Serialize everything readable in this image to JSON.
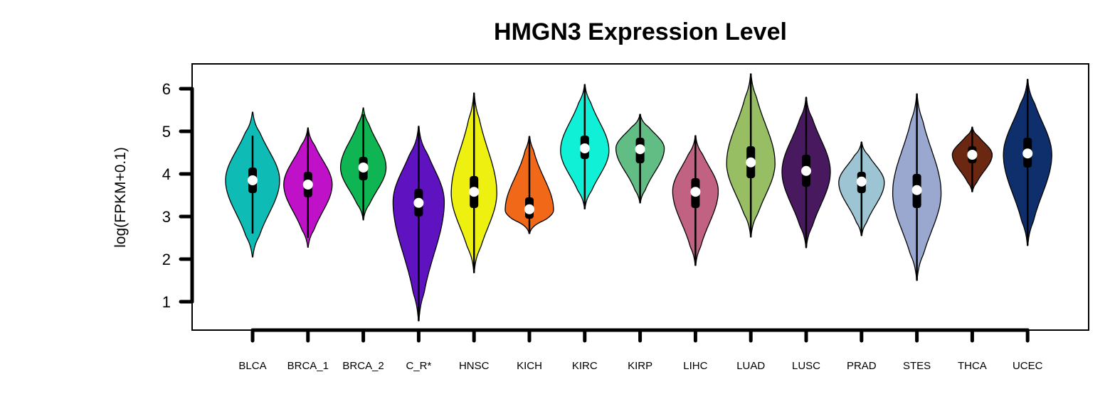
{
  "chart_data": {
    "type": "violin",
    "title": "HMGN3 Expression Level",
    "xlabel": "",
    "ylabel": "log(FPKM+0.1)",
    "yticks": [
      1,
      2,
      3,
      4,
      5,
      6
    ],
    "ylim": [
      0.3,
      6.6
    ],
    "grid": false,
    "legend": "none",
    "categories": [
      "BLCA",
      "BRCA_1",
      "BRCA_2",
      "C_R*",
      "HNSC",
      "KICH",
      "KIRC",
      "KIRP",
      "LIHC",
      "LUAD",
      "LUSC",
      "PRAD",
      "STES",
      "THCA",
      "UCEC"
    ],
    "series": [
      {
        "category": "BLCA",
        "color": "#0fbcb5",
        "min": 2.05,
        "max": 5.45,
        "q1": 3.55,
        "median": 3.85,
        "q3": 4.15,
        "whisker_low": 2.6,
        "whisker_high": 4.9,
        "mode": 3.85,
        "width": 0.95
      },
      {
        "category": "BRCA_1",
        "color": "#bf11c8",
        "min": 2.28,
        "max": 5.08,
        "q1": 3.45,
        "median": 3.75,
        "q3": 4.05,
        "whisker_low": 2.5,
        "whisker_high": 5.05,
        "mode": 3.75,
        "width": 0.85
      },
      {
        "category": "BRCA_2",
        "color": "#0fb553",
        "min": 2.92,
        "max": 5.55,
        "q1": 3.85,
        "median": 4.15,
        "q3": 4.4,
        "whisker_low": 3.0,
        "whisker_high": 5.4,
        "mode": 4.15,
        "width": 0.8
      },
      {
        "category": "C_R*",
        "color": "#5f12c0",
        "min": 0.55,
        "max": 5.12,
        "q1": 3.0,
        "median": 3.32,
        "q3": 3.65,
        "whisker_low": 0.55,
        "whisker_high": 5.1,
        "mode": 3.35,
        "width": 0.9
      },
      {
        "category": "HNSC",
        "color": "#eef00f",
        "min": 1.68,
        "max": 5.9,
        "q1": 3.2,
        "median": 3.58,
        "q3": 3.95,
        "whisker_low": 1.68,
        "whisker_high": 5.9,
        "mode": 3.55,
        "width": 0.8
      },
      {
        "category": "KICH",
        "color": "#f06818",
        "min": 2.6,
        "max": 4.88,
        "q1": 2.95,
        "median": 3.17,
        "q3": 3.45,
        "whisker_low": 2.6,
        "whisker_high": 4.88,
        "mode": 3.15,
        "width": 0.85
      },
      {
        "category": "KIRC",
        "color": "#0ff0d6",
        "min": 3.18,
        "max": 6.1,
        "q1": 4.35,
        "median": 4.6,
        "q3": 4.9,
        "whisker_low": 3.18,
        "whisker_high": 6.1,
        "mode": 4.55,
        "width": 0.85
      },
      {
        "category": "KIRP",
        "color": "#62bd85",
        "min": 3.32,
        "max": 5.4,
        "q1": 4.25,
        "median": 4.58,
        "q3": 4.85,
        "whisker_low": 3.32,
        "whisker_high": 5.4,
        "mode": 4.6,
        "width": 0.85
      },
      {
        "category": "LIHC",
        "color": "#c16282",
        "min": 1.85,
        "max": 4.9,
        "q1": 3.2,
        "median": 3.58,
        "q3": 3.9,
        "whisker_low": 1.85,
        "whisker_high": 4.9,
        "mode": 3.6,
        "width": 0.8
      },
      {
        "category": "LUAD",
        "color": "#97be62",
        "min": 2.52,
        "max": 6.35,
        "q1": 3.9,
        "median": 4.27,
        "q3": 4.65,
        "whisker_low": 2.52,
        "whisker_high": 6.35,
        "mode": 4.25,
        "width": 0.85
      },
      {
        "category": "LUSC",
        "color": "#491960",
        "min": 2.27,
        "max": 5.8,
        "q1": 3.7,
        "median": 4.07,
        "q3": 4.45,
        "whisker_low": 2.27,
        "whisker_high": 5.8,
        "mode": 4.05,
        "width": 0.85
      },
      {
        "category": "PRAD",
        "color": "#9dc4d2",
        "min": 2.55,
        "max": 4.75,
        "q1": 3.55,
        "median": 3.82,
        "q3": 4.05,
        "whisker_low": 2.55,
        "whisker_high": 4.75,
        "mode": 3.8,
        "width": 0.8
      },
      {
        "category": "STES",
        "color": "#9aa8d0",
        "min": 1.5,
        "max": 5.88,
        "q1": 3.2,
        "median": 3.62,
        "q3": 4.0,
        "whisker_low": 1.5,
        "whisker_high": 5.88,
        "mode": 3.55,
        "width": 0.85
      },
      {
        "category": "THCA",
        "color": "#6a2812",
        "min": 3.58,
        "max": 5.1,
        "q1": 4.25,
        "median": 4.45,
        "q3": 4.65,
        "whisker_low": 3.58,
        "whisker_high": 5.1,
        "mode": 4.45,
        "width": 0.7
      },
      {
        "category": "UCEC",
        "color": "#0f2e6c",
        "min": 2.32,
        "max": 6.22,
        "q1": 4.15,
        "median": 4.48,
        "q3": 4.85,
        "whisker_low": 2.32,
        "whisker_high": 6.22,
        "mode": 4.45,
        "width": 0.85
      }
    ]
  }
}
